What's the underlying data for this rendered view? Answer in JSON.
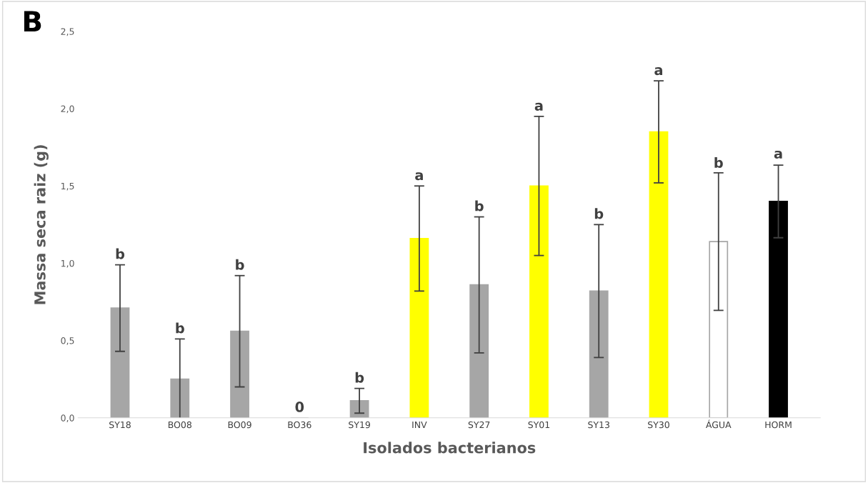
{
  "chart_data": {
    "type": "bar",
    "title": "B",
    "xlabel": "Isolados bacterianos",
    "ylabel": "Massa seca raiz (g)",
    "categories": [
      "SY18",
      "BO08",
      "BO09",
      "BO36",
      "SY19",
      "INV",
      "SY27",
      "SY01",
      "SY13",
      "SY30",
      "ÁGUA",
      "HORM"
    ],
    "values": [
      0.71,
      0.25,
      0.56,
      0,
      0.11,
      1.16,
      0.86,
      1.5,
      0.82,
      1.85,
      1.14,
      1.4
    ],
    "errors": [
      0.28,
      0.26,
      0.36,
      null,
      0.08,
      0.34,
      0.44,
      0.45,
      0.43,
      0.33,
      0.445,
      0.235
    ],
    "colors": [
      "#a6a6a6",
      "#a6a6a6",
      "#a6a6a6",
      "#a6a6a6",
      "#a6a6a6",
      "#ffff00",
      "#a6a6a6",
      "#ffff00",
      "#a6a6a6",
      "#ffff00",
      "#ffffff",
      "#000000"
    ],
    "ylim": [
      0,
      2.5
    ],
    "yticks": [
      {
        "value": 0,
        "label": "0,0"
      },
      {
        "value": 0.5,
        "label": "0,5"
      },
      {
        "value": 1,
        "label": "1,0"
      },
      {
        "value": 1.5,
        "label": "1,5"
      },
      {
        "value": 2,
        "label": "2,0"
      },
      {
        "value": 2.5,
        "label": "2,5"
      }
    ],
    "grid": false,
    "legend": false,
    "annotations": [
      {
        "text": "b",
        "x": "SY18",
        "y": 0.99
      },
      {
        "text": "b",
        "x": "BO08",
        "y": 0.51
      },
      {
        "text": "b",
        "x": "BO09",
        "y": 0.92
      },
      {
        "text": "0",
        "x": "BO36",
        "y": 0
      },
      {
        "text": "b",
        "x": "SY19",
        "y": 0.19
      },
      {
        "text": "a",
        "x": "INV",
        "y": 1.5
      },
      {
        "text": "b",
        "x": "SY27",
        "y": 1.3
      },
      {
        "text": "a",
        "x": "SY01",
        "y": 1.95
      },
      {
        "text": "b",
        "x": "SY13",
        "y": 1.25
      },
      {
        "text": "a",
        "x": "SY30",
        "y": 2.18
      },
      {
        "text": "b",
        "x": "ÁGUA",
        "y": 1.58
      },
      {
        "text": "a",
        "x": "HORM",
        "y": 1.64
      }
    ]
  }
}
